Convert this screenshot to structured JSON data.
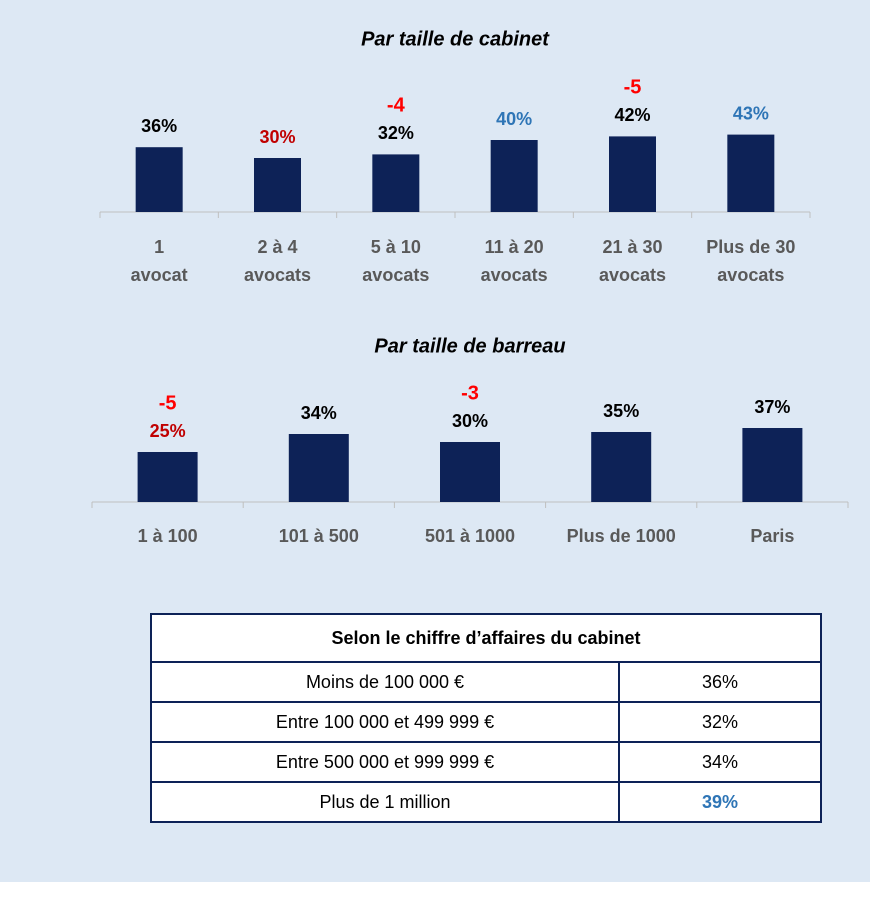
{
  "chart_data": [
    {
      "type": "bar",
      "title": "Par taille de cabinet",
      "categories": [
        "1 avocat",
        "2 à 4 avocats",
        "5 à 10 avocats",
        "11 à 20 avocats",
        "21 à 30 avocats",
        "Plus de 30 avocats"
      ],
      "values": [
        36,
        30,
        32,
        40,
        42,
        43
      ],
      "value_labels": [
        "36%",
        "30%",
        "32%",
        "40%",
        "42%",
        "43%"
      ],
      "label_colors": [
        "#000000",
        "#c00000",
        "#000000",
        "#2e75b6",
        "#000000",
        "#2e75b6"
      ],
      "deltas": [
        null,
        null,
        -4,
        null,
        -5,
        null
      ],
      "color": "#0d2257"
    },
    {
      "type": "bar",
      "title": "Par taille de barreau",
      "categories": [
        "1 à 100",
        "101 à 500",
        "501 à 1000",
        "Plus de 1000",
        "Paris"
      ],
      "values": [
        25,
        34,
        30,
        35,
        37
      ],
      "value_labels": [
        "25%",
        "34%",
        "30%",
        "35%",
        "37%"
      ],
      "label_colors": [
        "#c00000",
        "#000000",
        "#000000",
        "#000000",
        "#000000"
      ],
      "deltas": [
        -5,
        null,
        -3,
        null,
        null
      ],
      "color": "#0d2257"
    }
  ],
  "table": {
    "title": "Selon le chiffre d’affaires du cabinet",
    "rows": [
      [
        "Moins de 100 000 €",
        "36%"
      ],
      [
        "Entre 100 000 et 499 999 €",
        "32%"
      ],
      [
        "Entre 500 000 et 999 999 €",
        "34%"
      ],
      [
        "Plus de 1 million",
        "39%"
      ]
    ]
  }
}
